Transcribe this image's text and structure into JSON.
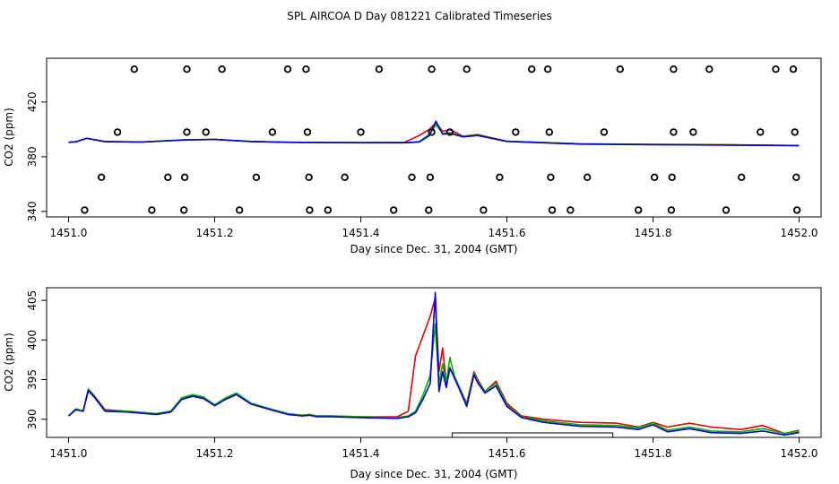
{
  "page_title": "SPL AIRCOA D  Day 081221  Calibrated Timeseries",
  "chart_data": [
    {
      "type": "scatter",
      "title": "SPL AIRCOA D  Day 081221  Calibrated Timeseries",
      "xlabel": "Day since Dec. 31, 2004 (GMT)",
      "ylabel": "CO2 (ppm)",
      "xlim": [
        1450.97,
        1452.03
      ],
      "ylim": [
        336,
        452
      ],
      "xticks": [
        1451.0,
        1451.2,
        1451.4,
        1451.6,
        1451.8,
        1452.0
      ],
      "xtick_labels": [
        "1451.0",
        "1451.2",
        "1451.4",
        "1451.6",
        "1451.8",
        "1452.0"
      ],
      "yticks": [
        340,
        380,
        420
      ],
      "ytick_labels": [
        "340",
        "380",
        "420"
      ],
      "grid": false,
      "reference_points": [
        {
          "level": 444,
          "x": [
            1451.09,
            1451.162,
            1451.21,
            1451.3,
            1451.325,
            1451.425,
            1451.497,
            1451.545,
            1451.634,
            1451.656,
            1451.755,
            1451.828,
            1451.877,
            1451.968,
            1451.992
          ]
        },
        {
          "level": 398,
          "x": [
            1451.067,
            1451.162,
            1451.188,
            1451.279,
            1451.327,
            1451.4,
            1451.497,
            1451.522,
            1451.612,
            1451.658,
            1451.733,
            1451.828,
            1451.855,
            1451.947,
            1451.994
          ]
        },
        {
          "level": 365,
          "x": [
            1451.045,
            1451.136,
            1451.159,
            1451.257,
            1451.329,
            1451.378,
            1451.47,
            1451.495,
            1451.59,
            1451.66,
            1451.71,
            1451.802,
            1451.826,
            1451.921,
            1451.996
          ]
        },
        {
          "level": 341,
          "x": [
            1451.022,
            1451.114,
            1451.158,
            1451.234,
            1451.33,
            1451.355,
            1451.445,
            1451.493,
            1451.568,
            1451.662,
            1451.687,
            1451.78,
            1451.825,
            1451.9,
            1451.997
          ]
        }
      ],
      "series": [
        {
          "name": "red",
          "color": "#e00000",
          "x": [
            1451.0,
            1451.01,
            1451.025,
            1451.05,
            1451.1,
            1451.16,
            1451.2,
            1451.25,
            1451.3,
            1451.35,
            1451.4,
            1451.46,
            1451.48,
            1451.494,
            1451.503,
            1451.512,
            1451.522,
            1451.54,
            1451.56,
            1451.6,
            1451.7,
            1451.8,
            1451.9,
            1452.0
          ],
          "y": [
            390.5,
            390.9,
            393.5,
            391.2,
            390.8,
            392.3,
            392.6,
            391.2,
            390.6,
            390.4,
            390.3,
            390.6,
            395.5,
            400.0,
            405.0,
            398.5,
            399.8,
            395.0,
            396.2,
            391.4,
            389.5,
            389.1,
            388.8,
            388.2
          ]
        },
        {
          "name": "green",
          "color": "#00b000",
          "x": [
            1451.0,
            1451.01,
            1451.025,
            1451.05,
            1451.1,
            1451.16,
            1451.2,
            1451.25,
            1451.3,
            1451.35,
            1451.4,
            1451.46,
            1451.48,
            1451.494,
            1451.503,
            1451.512,
            1451.522,
            1451.54,
            1451.56,
            1451.6,
            1451.7,
            1451.8,
            1451.9,
            1452.0
          ],
          "y": [
            390.5,
            390.9,
            393.5,
            391.1,
            390.7,
            392.4,
            392.7,
            391.2,
            390.6,
            390.4,
            390.3,
            390.3,
            391.0,
            396.5,
            403.5,
            397.0,
            397.5,
            395.0,
            395.8,
            391.4,
            389.4,
            388.9,
            388.6,
            388.2
          ]
        },
        {
          "name": "blue",
          "color": "#0000d0",
          "x": [
            1451.0,
            1451.01,
            1451.025,
            1451.05,
            1451.1,
            1451.16,
            1451.2,
            1451.25,
            1451.3,
            1451.35,
            1451.4,
            1451.46,
            1451.48,
            1451.494,
            1451.503,
            1451.512,
            1451.522,
            1451.54,
            1451.56,
            1451.6,
            1451.7,
            1451.8,
            1451.9,
            1452.0
          ],
          "y": [
            390.5,
            390.9,
            393.5,
            391.0,
            390.7,
            392.3,
            392.6,
            391.1,
            390.5,
            390.3,
            390.2,
            390.2,
            390.8,
            395.5,
            406.0,
            396.5,
            397.0,
            394.5,
            395.5,
            391.2,
            389.2,
            388.8,
            388.5,
            388.2
          ]
        }
      ]
    },
    {
      "type": "line",
      "xlabel": "Day since Dec. 31, 2004 (GMT)",
      "ylabel": "CO2 (ppm)",
      "xlim": [
        1450.97,
        1452.03
      ],
      "ylim": [
        387.7,
        406.6
      ],
      "xticks": [
        1451.0,
        1451.2,
        1451.4,
        1451.6,
        1451.8,
        1452.0
      ],
      "xtick_labels": [
        "1451.0",
        "1451.2",
        "1451.4",
        "1451.6",
        "1451.8",
        "1452.0"
      ],
      "yticks": [
        390,
        395,
        400,
        405
      ],
      "ytick_labels": [
        "390",
        "395",
        "400",
        "405"
      ],
      "grid": false,
      "bracket": {
        "x_start": 1451.525,
        "x_end": 1451.745
      },
      "series": [
        {
          "name": "red",
          "color": "#e00000",
          "x": [
            1451.0,
            1451.01,
            1451.02,
            1451.027,
            1451.035,
            1451.05,
            1451.08,
            1451.12,
            1451.14,
            1451.155,
            1451.17,
            1451.185,
            1451.2,
            1451.215,
            1451.23,
            1451.25,
            1451.28,
            1451.3,
            1451.32,
            1451.33,
            1451.34,
            1451.36,
            1451.4,
            1451.45,
            1451.465,
            1451.475,
            1451.485,
            1451.495,
            1451.502,
            1451.507,
            1451.512,
            1451.517,
            1451.522,
            1451.528,
            1451.535,
            1451.545,
            1451.555,
            1451.56,
            1451.57,
            1451.585,
            1451.6,
            1451.62,
            1451.65,
            1451.7,
            1451.75,
            1451.78,
            1451.8,
            1451.82,
            1451.85,
            1451.88,
            1451.92,
            1451.95,
            1451.98,
            1452.0
          ],
          "y": [
            390.4,
            391.3,
            391.0,
            393.8,
            393.0,
            391.2,
            391.0,
            390.7,
            391.0,
            392.6,
            393.0,
            392.7,
            391.8,
            392.6,
            393.2,
            392.0,
            391.2,
            390.7,
            390.5,
            390.6,
            390.4,
            390.4,
            390.3,
            390.3,
            391.0,
            398.0,
            400.5,
            403.0,
            405.3,
            396.0,
            399.0,
            394.5,
            396.3,
            395.5,
            394.0,
            392.0,
            396.0,
            395.0,
            393.5,
            394.8,
            392.0,
            390.4,
            390.0,
            389.6,
            389.5,
            389.0,
            389.6,
            389.0,
            389.5,
            389.0,
            388.7,
            389.2,
            388.2,
            388.6
          ]
        },
        {
          "name": "green",
          "color": "#00b000",
          "x": [
            1451.0,
            1451.01,
            1451.02,
            1451.027,
            1451.035,
            1451.05,
            1451.08,
            1451.12,
            1451.14,
            1451.155,
            1451.17,
            1451.185,
            1451.2,
            1451.215,
            1451.23,
            1451.25,
            1451.28,
            1451.3,
            1451.32,
            1451.33,
            1451.34,
            1451.36,
            1451.4,
            1451.45,
            1451.465,
            1451.475,
            1451.485,
            1451.495,
            1451.502,
            1451.507,
            1451.512,
            1451.517,
            1451.522,
            1451.528,
            1451.535,
            1451.545,
            1451.555,
            1451.56,
            1451.57,
            1451.585,
            1451.6,
            1451.62,
            1451.65,
            1451.7,
            1451.75,
            1451.78,
            1451.8,
            1451.82,
            1451.85,
            1451.88,
            1451.92,
            1451.95,
            1451.98,
            1452.0
          ],
          "y": [
            390.4,
            391.3,
            391.0,
            393.7,
            392.9,
            391.1,
            391.0,
            390.7,
            391.0,
            392.7,
            393.1,
            392.8,
            391.8,
            392.7,
            393.3,
            392.0,
            391.2,
            390.7,
            390.5,
            390.6,
            390.4,
            390.4,
            390.3,
            390.2,
            390.4,
            391.0,
            393.0,
            395.5,
            402.0,
            394.5,
            397.0,
            394.5,
            397.8,
            395.5,
            394.0,
            391.8,
            395.8,
            394.8,
            393.5,
            394.5,
            391.8,
            390.3,
            389.8,
            389.3,
            389.2,
            388.9,
            389.5,
            388.6,
            389.0,
            388.5,
            388.4,
            388.8,
            388.2,
            388.5
          ]
        },
        {
          "name": "blue",
          "color": "#0000d0",
          "x": [
            1451.0,
            1451.01,
            1451.02,
            1451.027,
            1451.035,
            1451.05,
            1451.08,
            1451.12,
            1451.14,
            1451.155,
            1451.17,
            1451.185,
            1451.2,
            1451.215,
            1451.23,
            1451.25,
            1451.28,
            1451.3,
            1451.32,
            1451.33,
            1451.34,
            1451.36,
            1451.4,
            1451.45,
            1451.465,
            1451.475,
            1451.485,
            1451.495,
            1451.502,
            1451.507,
            1451.512,
            1451.517,
            1451.522,
            1451.528,
            1451.535,
            1451.545,
            1451.555,
            1451.56,
            1451.57,
            1451.585,
            1451.6,
            1451.62,
            1451.65,
            1451.7,
            1451.75,
            1451.78,
            1451.8,
            1451.82,
            1451.85,
            1451.88,
            1451.92,
            1451.95,
            1451.98,
            1452.0
          ],
          "y": [
            390.4,
            391.2,
            391.0,
            393.6,
            392.8,
            391.0,
            390.9,
            390.6,
            390.9,
            392.5,
            392.9,
            392.6,
            391.7,
            392.5,
            393.1,
            391.9,
            391.1,
            390.6,
            390.4,
            390.5,
            390.3,
            390.3,
            390.2,
            390.1,
            390.3,
            390.8,
            392.5,
            394.5,
            406.0,
            393.5,
            396.0,
            394.0,
            396.5,
            395.2,
            393.8,
            391.6,
            395.6,
            394.6,
            393.3,
            394.2,
            391.6,
            390.2,
            389.6,
            389.1,
            389.0,
            388.7,
            389.3,
            388.4,
            388.8,
            388.3,
            388.2,
            388.5,
            388.0,
            388.3
          ]
        }
      ]
    }
  ]
}
